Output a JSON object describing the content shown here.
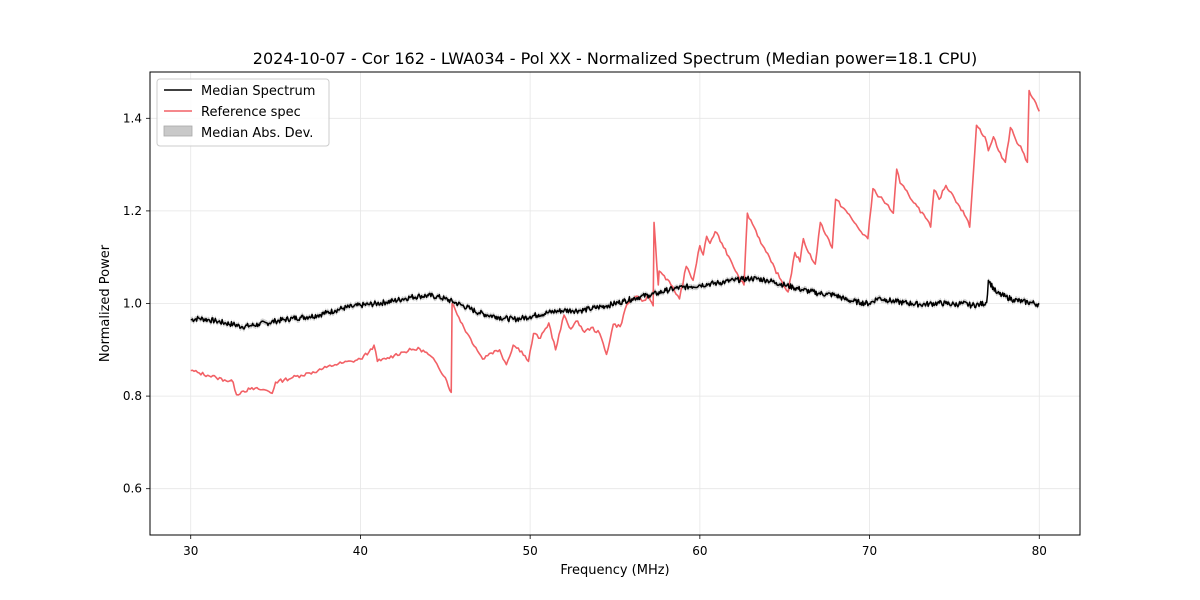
{
  "chart_data": {
    "type": "line",
    "title": "2024-10-07 - Cor 162 - LWA034 - Pol XX - Normalized Spectrum (Median power=18.1 CPU)",
    "xlabel": "Frequency (MHz)",
    "ylabel": "Normalized Power",
    "xlim": [
      27.6,
      82.4
    ],
    "ylim": [
      0.5,
      1.5
    ],
    "xticks": [
      30,
      40,
      50,
      60,
      70,
      80
    ],
    "xtick_labels": [
      "30",
      "40",
      "50",
      "60",
      "70",
      "80"
    ],
    "yticks": [
      0.6,
      0.8,
      1.0,
      1.2,
      1.4
    ],
    "ytick_labels": [
      "0.6",
      "0.8",
      "1.0",
      "1.2",
      "1.4"
    ],
    "grid": true,
    "legend_position": "upper-left",
    "colors": {
      "median": "#000000",
      "reference": "#f26166",
      "mad": "#b0b0b0"
    },
    "legend": [
      {
        "label": "Median Spectrum",
        "kind": "line",
        "color": "#000000"
      },
      {
        "label": "Reference spec",
        "kind": "line",
        "color": "#f26166"
      },
      {
        "label": "Median Abs. Dev.",
        "kind": "patch",
        "color": "#bdbdbd"
      }
    ],
    "series": [
      {
        "name": "Median Spectrum",
        "color": "#000000",
        "x": [
          30,
          30.5,
          31,
          31.5,
          32,
          32.5,
          33,
          33.5,
          34,
          34.5,
          35,
          35.5,
          36,
          36.5,
          37,
          37.5,
          38,
          38.5,
          39,
          39.5,
          40,
          40.5,
          41,
          41.5,
          42,
          42.5,
          43,
          43.5,
          44,
          44.5,
          45,
          45.5,
          46,
          46.5,
          47,
          47.5,
          48,
          48.5,
          49,
          49.5,
          50,
          50.5,
          51,
          51.5,
          52,
          52.5,
          53,
          53.5,
          54,
          54.5,
          55,
          55.5,
          56,
          56.5,
          57,
          57.5,
          58,
          58.5,
          59,
          59.5,
          60,
          60.5,
          61,
          61.5,
          62,
          62.5,
          63,
          63.5,
          64,
          64.5,
          65,
          65.5,
          66,
          66.5,
          67,
          67.5,
          68,
          68.5,
          69,
          69.5,
          70,
          70.5,
          71,
          71.5,
          72,
          72.5,
          73,
          73.5,
          74,
          74.5,
          75,
          75.5,
          76,
          76.5,
          76.9,
          77,
          77.5,
          78,
          78.5,
          79,
          79.5,
          80
        ],
        "y": [
          0.965,
          0.968,
          0.965,
          0.962,
          0.958,
          0.955,
          0.95,
          0.952,
          0.955,
          0.958,
          0.962,
          0.965,
          0.968,
          0.97,
          0.972,
          0.975,
          0.98,
          0.985,
          0.99,
          0.993,
          0.996,
          0.998,
          1.0,
          1.003,
          1.006,
          1.01,
          1.014,
          1.016,
          1.017,
          1.015,
          1.01,
          1.003,
          0.996,
          0.988,
          0.98,
          0.975,
          0.972,
          0.968,
          0.966,
          0.968,
          0.972,
          0.976,
          0.98,
          0.983,
          0.985,
          0.985,
          0.985,
          0.988,
          0.992,
          0.995,
          1.0,
          1.005,
          1.01,
          1.015,
          1.018,
          1.022,
          1.028,
          1.032,
          1.035,
          1.037,
          1.04,
          1.042,
          1.044,
          1.047,
          1.05,
          1.052,
          1.054,
          1.053,
          1.05,
          1.045,
          1.04,
          1.035,
          1.03,
          1.026,
          1.022,
          1.02,
          1.018,
          1.01,
          1.005,
          1.002,
          1.0,
          1.012,
          1.008,
          1.004,
          1.002,
          1.0,
          0.998,
          0.999,
          1.001,
          1.0,
          0.998,
          1.0,
          0.996,
          0.998,
          1.002,
          1.05,
          1.022,
          1.015,
          1.008,
          1.004,
          1.002,
          0.998
        ]
      },
      {
        "name": "Reference spec",
        "color": "#f26166",
        "x": [
          30,
          30.5,
          31,
          31.5,
          32,
          32.5,
          32.7,
          33,
          33.5,
          34,
          34.5,
          34.8,
          35,
          35.5,
          36,
          36.5,
          37,
          37.5,
          38,
          38.5,
          39,
          39.5,
          40,
          40.5,
          40.8,
          41,
          41.5,
          42,
          42.5,
          43,
          43.5,
          44,
          44.5,
          45,
          45.35,
          45.4,
          45.8,
          46.3,
          46.8,
          47.2,
          47.6,
          48.2,
          48.6,
          49.0,
          49.5,
          49.9,
          50.2,
          50.6,
          51.1,
          51.5,
          52,
          52.4,
          52.8,
          53.2,
          53.6,
          54.1,
          54.5,
          54.9,
          55.3,
          55.7,
          56.2,
          56.6,
          57.0,
          57.25,
          57.3,
          57.55,
          57.6,
          57.9,
          58.3,
          58.8,
          59.2,
          59.6,
          60.0,
          60.2,
          60.4,
          60.6,
          60.9,
          61.3,
          61.8,
          62.2,
          62.6,
          62.8,
          63.2,
          63.7,
          64.2,
          64.7,
          65.2,
          65.6,
          65.9,
          66.1,
          66.4,
          66.8,
          67.1,
          67.5,
          67.8,
          68.0,
          68.5,
          69.0,
          69.5,
          69.9,
          70.2,
          70.6,
          71.0,
          71.4,
          71.6,
          71.8,
          72.3,
          72.8,
          73.3,
          73.6,
          73.8,
          74.1,
          74.5,
          74.9,
          75.3,
          75.7,
          75.9,
          76.3,
          76.8,
          77.0,
          77.3,
          77.6,
          78.0,
          78.3,
          78.6,
          79.0,
          79.3,
          79.4,
          79.7,
          80.0
        ],
        "y": [
          0.855,
          0.85,
          0.845,
          0.84,
          0.835,
          0.83,
          0.803,
          0.81,
          0.815,
          0.815,
          0.812,
          0.806,
          0.83,
          0.835,
          0.84,
          0.845,
          0.85,
          0.855,
          0.862,
          0.868,
          0.872,
          0.875,
          0.88,
          0.895,
          0.91,
          0.875,
          0.88,
          0.888,
          0.895,
          0.9,
          0.902,
          0.89,
          0.87,
          0.84,
          0.808,
          1.0,
          0.97,
          0.935,
          0.905,
          0.88,
          0.892,
          0.9,
          0.868,
          0.91,
          0.897,
          0.875,
          0.935,
          0.925,
          0.958,
          0.9,
          0.975,
          0.945,
          0.962,
          0.938,
          0.948,
          0.935,
          0.89,
          0.955,
          0.95,
          0.998,
          1.015,
          1.005,
          1.015,
          0.995,
          1.175,
          1.04,
          1.07,
          1.06,
          1.04,
          1.01,
          1.08,
          1.05,
          1.125,
          1.105,
          1.145,
          1.13,
          1.155,
          1.13,
          1.095,
          1.065,
          1.04,
          1.195,
          1.165,
          1.125,
          1.09,
          1.055,
          1.025,
          1.11,
          1.09,
          1.14,
          1.11,
          1.085,
          1.175,
          1.145,
          1.12,
          1.225,
          1.205,
          1.18,
          1.155,
          1.14,
          1.248,
          1.23,
          1.215,
          1.195,
          1.29,
          1.26,
          1.235,
          1.21,
          1.185,
          1.165,
          1.245,
          1.225,
          1.255,
          1.235,
          1.21,
          1.185,
          1.165,
          1.385,
          1.36,
          1.33,
          1.36,
          1.33,
          1.305,
          1.38,
          1.355,
          1.33,
          1.305,
          1.46,
          1.44,
          1.415
        ]
      }
    ]
  }
}
